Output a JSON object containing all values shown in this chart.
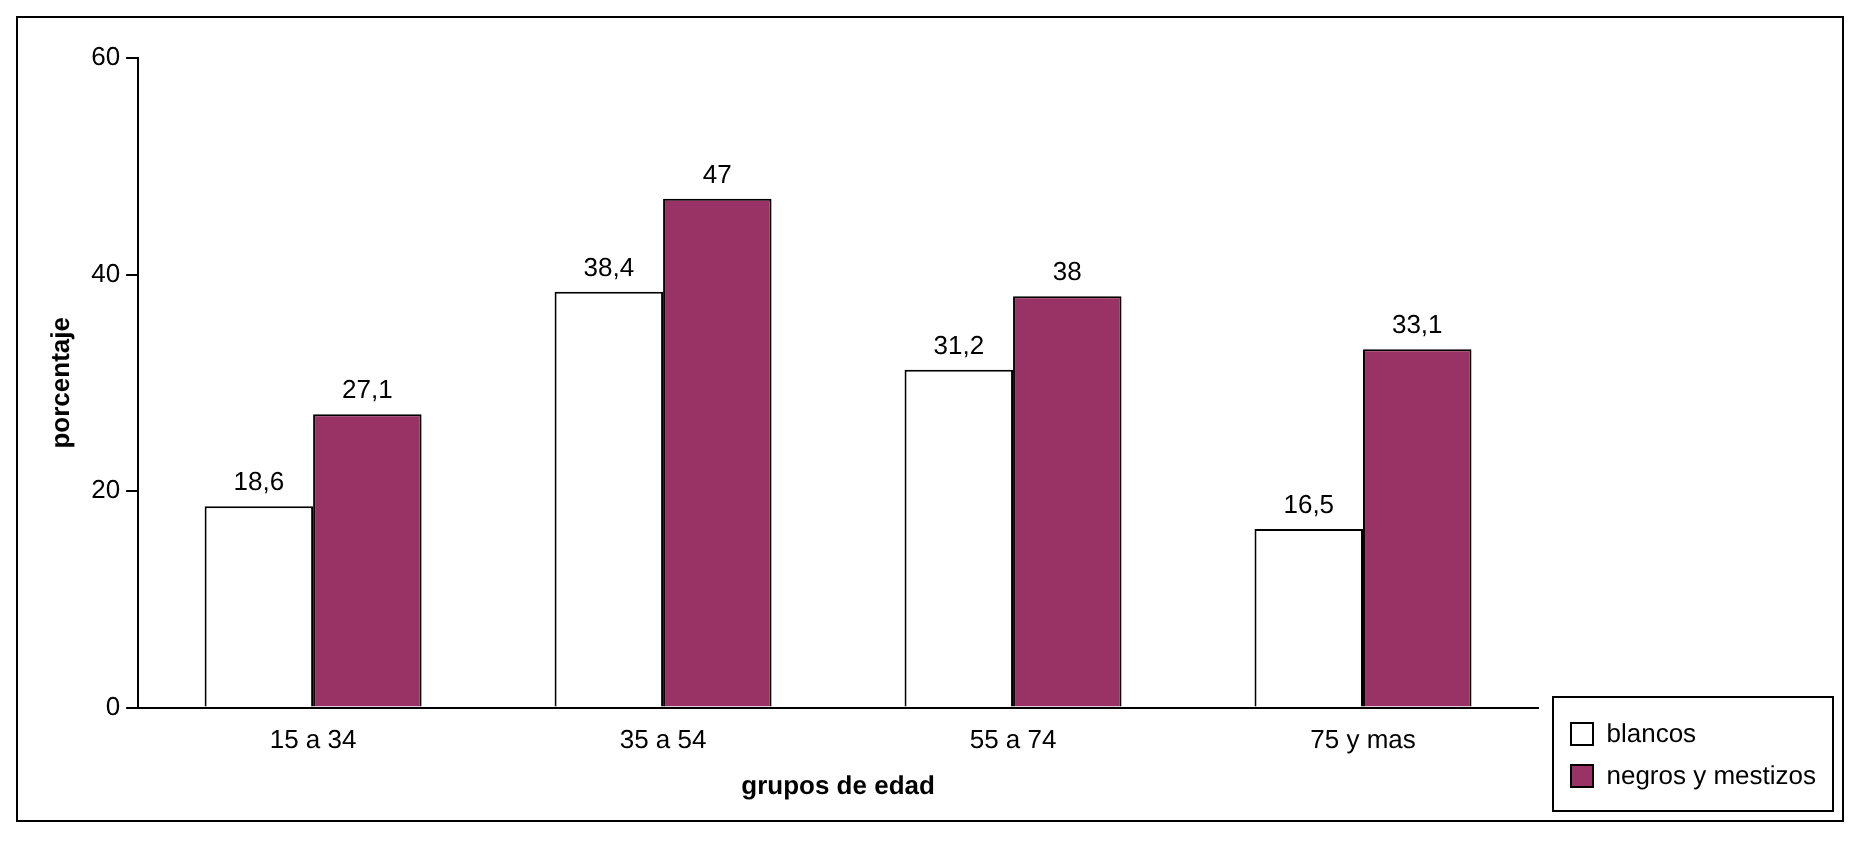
{
  "chart_data": {
    "type": "bar",
    "xlabel": "grupos de edad",
    "ylabel": "porcentaje",
    "categories": [
      "15 a 34",
      "35 a 54",
      "55 a 74",
      "75 y mas"
    ],
    "series": [
      {
        "name": "blancos",
        "color": "#ffffff",
        "values": [
          18.6,
          38.4,
          31.2,
          16.5
        ],
        "value_labels": [
          "18,6",
          "38,4",
          "31,2",
          "16,5"
        ]
      },
      {
        "name": "negros y mestizos",
        "color": "#993366",
        "values": [
          27.1,
          47,
          38,
          33.1
        ],
        "value_labels": [
          "27,1",
          "47",
          "38",
          "33,1"
        ]
      }
    ],
    "ylim": [
      0,
      60
    ],
    "yticks": [
      0,
      20,
      40,
      60
    ],
    "grid": false,
    "legend": "bottom right"
  }
}
